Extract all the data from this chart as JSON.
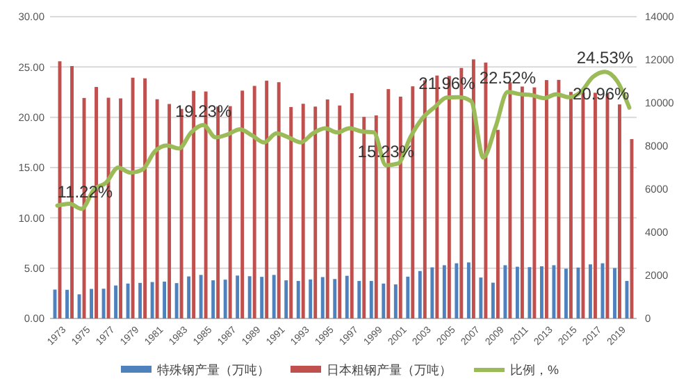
{
  "chart_data": {
    "type": "bar",
    "categories": [
      "1973",
      null,
      "1975",
      null,
      "1977",
      null,
      "1979",
      null,
      "1981",
      null,
      "1983",
      null,
      "1985",
      null,
      "1987",
      null,
      "1989",
      null,
      "1991",
      null,
      "1993",
      null,
      "1995",
      null,
      "1997",
      null,
      "1999",
      null,
      "2001",
      null,
      "2003",
      null,
      "2005",
      null,
      "2007",
      null,
      "2009",
      null,
      "2011",
      null,
      "2013",
      null,
      "2015",
      null,
      "2017",
      null,
      "2019",
      null
    ],
    "series": [
      {
        "name": "特殊钢产量（万吨）",
        "axis": "y2",
        "color": "#4f81bd",
        "values": [
          1340,
          1330,
          1120,
          1370,
          1380,
          1530,
          1620,
          1650,
          1690,
          1710,
          1640,
          1950,
          2020,
          1770,
          1800,
          1990,
          1960,
          1930,
          2020,
          1770,
          1740,
          1810,
          1920,
          1830,
          1980,
          1740,
          1740,
          1620,
          1580,
          1940,
          2200,
          2370,
          2470,
          2560,
          2600,
          1900,
          1660,
          2470,
          2400,
          2380,
          2420,
          2470,
          2310,
          2360,
          2510,
          2560,
          2340,
          1740
        ]
      },
      {
        "name": "日本粗钢产量（万吨）",
        "axis": "y2",
        "color": "#c0504d",
        "values": [
          11930,
          11710,
          10230,
          10740,
          10240,
          10210,
          11170,
          11140,
          10170,
          9950,
          9720,
          10560,
          10530,
          9830,
          9850,
          10570,
          10790,
          11030,
          10960,
          9810,
          9960,
          9830,
          10160,
          9880,
          10450,
          9350,
          9420,
          10640,
          10290,
          10770,
          11050,
          11270,
          11250,
          11620,
          12020,
          11870,
          8750,
          10960,
          10760,
          10720,
          11060,
          11070,
          10510,
          10480,
          10470,
          10430,
          9930,
          8320
        ]
      },
      {
        "name": "比例，%",
        "type": "line",
        "color": "#9bbb59",
        "values": [
          11.22,
          11.4,
          10.9,
          12.8,
          13.5,
          15.0,
          14.5,
          14.8,
          16.6,
          17.2,
          16.9,
          18.5,
          19.23,
          18.0,
          18.3,
          18.8,
          18.2,
          17.5,
          18.4,
          18.0,
          17.5,
          18.4,
          18.9,
          18.5,
          18.9,
          18.6,
          18.5,
          15.23,
          15.4,
          18.0,
          19.9,
          21.0,
          21.96,
          22.0,
          21.6,
          16.0,
          19.0,
          22.52,
          22.3,
          22.2,
          21.9,
          22.3,
          22.0,
          22.5,
          24.0,
          24.53,
          23.6,
          20.96
        ],
        "value_labels": [
          "11.22%",
          null,
          null,
          null,
          null,
          null,
          null,
          null,
          null,
          null,
          null,
          null,
          "19.23%",
          null,
          null,
          null,
          null,
          null,
          null,
          null,
          null,
          null,
          null,
          null,
          null,
          null,
          null,
          "15.23%",
          null,
          null,
          null,
          null,
          "21.96%",
          null,
          null,
          null,
          null,
          "22.52%",
          null,
          null,
          null,
          null,
          null,
          null,
          null,
          "24.53%",
          null,
          "20.96%"
        ]
      }
    ],
    "ylim": [
      0,
      30
    ],
    "yticks": [
      {
        "value": 0,
        "label": "0.00"
      },
      {
        "value": 5,
        "label": "5.00"
      },
      {
        "value": 10,
        "label": "10.00"
      },
      {
        "value": 15,
        "label": "15.00"
      },
      {
        "value": 20,
        "label": "20.00"
      },
      {
        "value": 25,
        "label": "25.00"
      },
      {
        "value": 30,
        "label": "30.00"
      }
    ],
    "y2lim": [
      0,
      14000
    ],
    "y2ticks": [
      0,
      2000,
      4000,
      6000,
      8000,
      10000,
      12000,
      14000
    ],
    "grid": "y",
    "legend": "bottom"
  }
}
